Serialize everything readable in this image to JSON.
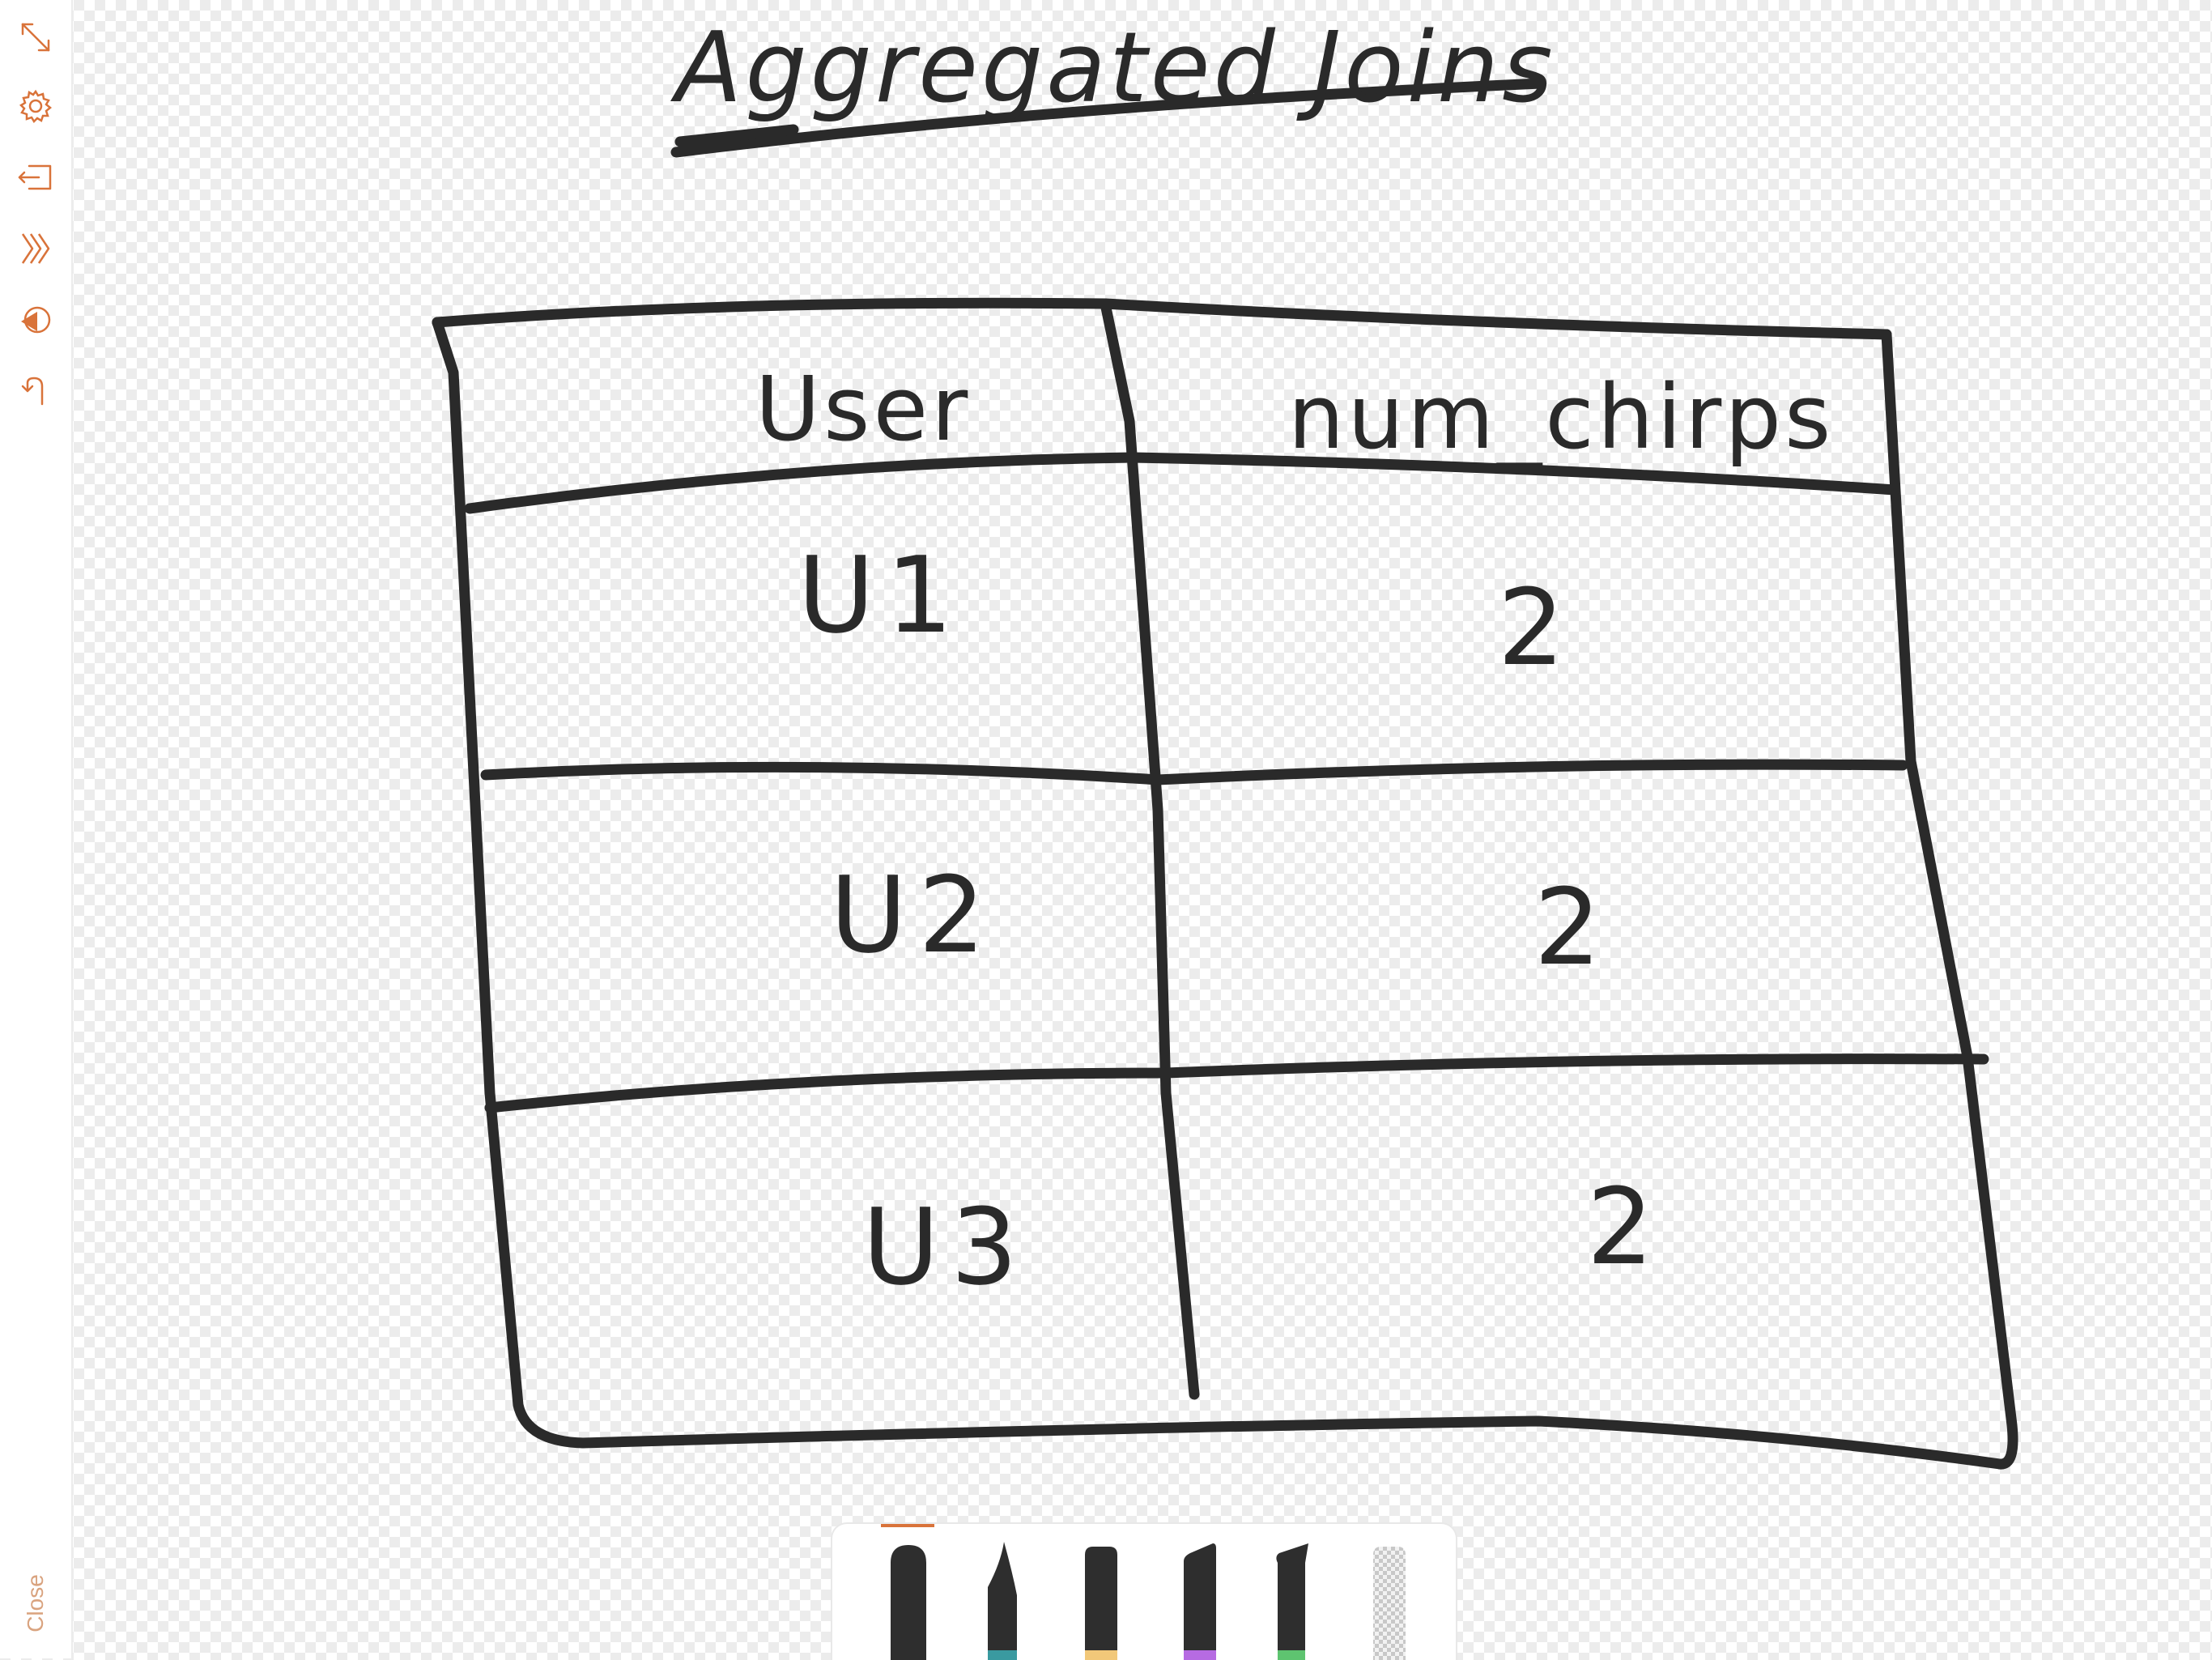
{
  "sidebar": {
    "tools": [
      {
        "icon": "expand-icon"
      },
      {
        "icon": "gear-icon"
      },
      {
        "icon": "export-icon"
      },
      {
        "icon": "layers-icon"
      },
      {
        "icon": "color-picker-icon"
      },
      {
        "icon": "undo-icon"
      }
    ],
    "close_label": "Close",
    "accent_color": "#d9733a"
  },
  "drawing": {
    "title": "Aggregated Joins",
    "table": {
      "headers": [
        "User",
        "num_chirps"
      ],
      "rows": [
        [
          "U1",
          "2"
        ],
        [
          "U2",
          "2"
        ],
        [
          "U3",
          "2"
        ]
      ]
    },
    "ink_color": "#2a2a2a"
  },
  "pen_tray": {
    "selected_index": 0,
    "tools": [
      {
        "icon": "marker-pen-icon",
        "color": "#2a2a2a"
      },
      {
        "icon": "brush-pen-icon",
        "color": "#3a9aa0"
      },
      {
        "icon": "flat-pen-icon",
        "color": "#f2c879"
      },
      {
        "icon": "chisel-pen-icon",
        "color": "#b66be2"
      },
      {
        "icon": "calligraphy-pen-icon",
        "color": "#5ec470"
      },
      {
        "icon": "eraser-icon",
        "color": "#cccccc"
      }
    ]
  }
}
